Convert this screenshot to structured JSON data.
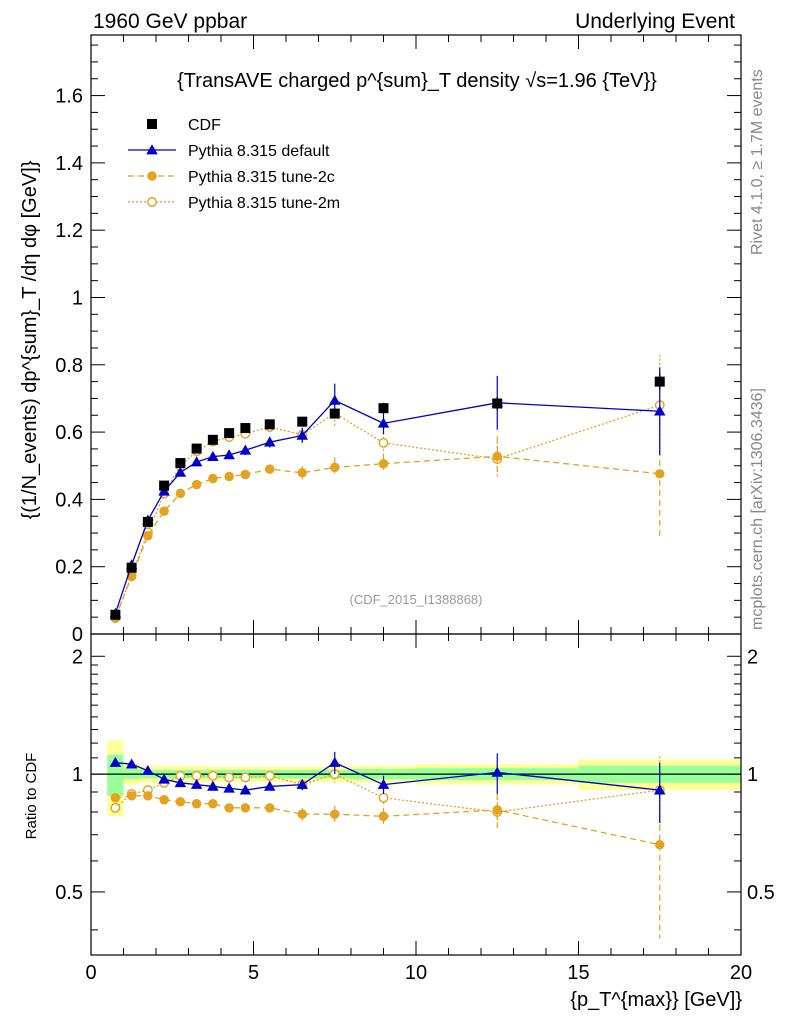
{
  "header": {
    "left": "1960 GeV ppbar",
    "right": "Underlying Event"
  },
  "side": {
    "rivet": "Rivet 4.1.0, ≥ 1.7M events",
    "mcplots": "mcplots.cern.ch [arXiv:1306.3436]"
  },
  "chart_data": [
    {
      "type": "scatter",
      "panel": "main",
      "title": "{TransAVE charged p^{sum}_T density √s=1.96 {TeV}}",
      "watermark": "(CDF_2015_I1388868)",
      "ylabel": "{(1/N_events) dp^{sum}_T /dη  dφ [GeV]}",
      "xlim": [
        0,
        20
      ],
      "ylim": [
        0,
        1.78
      ],
      "yticks": [
        "0",
        "0.2",
        "0.4",
        "0.6",
        "0.8",
        "1",
        "1.2",
        "1.4",
        "1.6"
      ],
      "legend": [
        "CDF",
        "Pythia 8.315 default",
        "Pythia 8.315 tune-2c",
        "Pythia 8.315 tune-2m"
      ],
      "legend_position": "top-left",
      "series": [
        {
          "name": "CDF",
          "style": "square",
          "color": "#000000",
          "x": [
            0.75,
            1.25,
            1.75,
            2.25,
            2.75,
            3.25,
            3.75,
            4.25,
            4.75,
            5.5,
            6.5,
            7.5,
            9.0,
            12.5,
            17.5
          ],
          "y": [
            0.057,
            0.197,
            0.333,
            0.441,
            0.508,
            0.551,
            0.577,
            0.597,
            0.612,
            0.623,
            0.631,
            0.655,
            0.671,
            0.685,
            0.75
          ],
          "err": [
            0.004,
            0.006,
            0.008,
            0.009,
            0.01,
            0.01,
            0.011,
            0.011,
            0.012,
            0.012,
            0.013,
            0.014,
            0.016,
            0.02,
            0.025
          ]
        },
        {
          "name": "Pythia 8.315 default",
          "style": "triangle",
          "color": "#0000cc",
          "x": [
            0.75,
            1.25,
            1.75,
            2.25,
            2.75,
            3.25,
            3.75,
            4.25,
            4.75,
            5.5,
            6.5,
            7.5,
            9.0,
            12.5,
            17.5
          ],
          "y": [
            0.061,
            0.205,
            0.338,
            0.424,
            0.48,
            0.511,
            0.527,
            0.532,
            0.546,
            0.57,
            0.59,
            0.694,
            0.626,
            0.687,
            0.662
          ],
          "err": [
            0.003,
            0.004,
            0.006,
            0.007,
            0.008,
            0.01,
            0.011,
            0.012,
            0.014,
            0.016,
            0.022,
            0.05,
            0.032,
            0.08,
            0.13
          ]
        },
        {
          "name": "Pythia 8.315 tune-2c",
          "style": "circle",
          "color": "#e3a220",
          "dash": "6,4",
          "x": [
            0.75,
            1.25,
            1.75,
            2.25,
            2.75,
            3.25,
            3.75,
            4.25,
            4.75,
            5.5,
            6.5,
            7.5,
            9.0,
            12.5,
            17.5
          ],
          "y": [
            0.049,
            0.171,
            0.292,
            0.365,
            0.418,
            0.444,
            0.462,
            0.468,
            0.474,
            0.49,
            0.479,
            0.495,
            0.506,
            0.528,
            0.476
          ],
          "err": [
            0.003,
            0.004,
            0.005,
            0.006,
            0.007,
            0.008,
            0.009,
            0.01,
            0.012,
            0.014,
            0.02,
            0.03,
            0.03,
            0.06,
            0.19
          ]
        },
        {
          "name": "Pythia 8.315 tune-2m",
          "style": "open-circle",
          "color": "#e3a220",
          "dash": "2,2",
          "x": [
            0.75,
            1.25,
            1.75,
            2.25,
            2.75,
            3.25,
            3.75,
            4.25,
            4.75,
            5.5,
            6.5,
            7.5,
            9.0,
            12.5,
            17.5
          ],
          "y": [
            0.047,
            0.175,
            0.302,
            0.417,
            0.5,
            0.543,
            0.572,
            0.585,
            0.595,
            0.615,
            0.592,
            0.656,
            0.568,
            0.52,
            0.68
          ],
          "err": [
            0.003,
            0.004,
            0.006,
            0.007,
            0.009,
            0.01,
            0.011,
            0.012,
            0.014,
            0.016,
            0.022,
            0.04,
            0.03,
            0.05,
            0.15
          ]
        }
      ]
    },
    {
      "type": "scatter",
      "panel": "ratio",
      "ylabel": "Ratio to CDF",
      "xlabel": "{p_T^{max}} [GeV]}",
      "xlim": [
        0,
        20
      ],
      "ylim": [
        0.345,
        2.28
      ],
      "ylog": true,
      "xticks": [
        "0",
        "5",
        "10",
        "15",
        "20"
      ],
      "yticks": [
        "0.5",
        "1",
        "2"
      ],
      "bands": {
        "edges": [
          0.5,
          1.0,
          1.5,
          2.0,
          2.5,
          3.0,
          3.5,
          4.0,
          4.5,
          5.0,
          6.0,
          7.0,
          8.0,
          10.0,
          15.0,
          20.0
        ],
        "yellow_half": [
          0.22,
          0.06,
          0.05,
          0.05,
          0.05,
          0.05,
          0.045,
          0.045,
          0.045,
          0.045,
          0.045,
          0.045,
          0.05,
          0.06,
          0.09
        ],
        "green_half": [
          0.12,
          0.03,
          0.025,
          0.025,
          0.025,
          0.025,
          0.025,
          0.025,
          0.025,
          0.025,
          0.025,
          0.025,
          0.03,
          0.035,
          0.05
        ]
      },
      "series": [
        {
          "name": "Pythia 8.315 default",
          "style": "triangle",
          "color": "#0000cc",
          "x": [
            0.75,
            1.25,
            1.75,
            2.25,
            2.75,
            3.25,
            3.75,
            4.25,
            4.75,
            5.5,
            6.5,
            7.5,
            9.0,
            12.5,
            17.5
          ],
          "y": [
            1.07,
            1.06,
            1.02,
            0.97,
            0.95,
            0.94,
            0.93,
            0.92,
            0.91,
            0.93,
            0.94,
            1.07,
            0.94,
            1.01,
            0.91
          ],
          "err": [
            0.01,
            0.01,
            0.01,
            0.01,
            0.01,
            0.01,
            0.01,
            0.01,
            0.015,
            0.015,
            0.03,
            0.07,
            0.05,
            0.12,
            0.16
          ]
        },
        {
          "name": "Pythia 8.315 tune-2c",
          "style": "circle",
          "color": "#e3a220",
          "dash": "6,4",
          "x": [
            0.75,
            1.25,
            1.75,
            2.25,
            2.75,
            3.25,
            3.75,
            4.25,
            4.75,
            5.5,
            6.5,
            7.5,
            9.0,
            12.5,
            17.5
          ],
          "y": [
            0.87,
            0.88,
            0.88,
            0.86,
            0.85,
            0.84,
            0.84,
            0.82,
            0.82,
            0.82,
            0.79,
            0.79,
            0.78,
            0.81,
            0.66
          ],
          "err": [
            0.01,
            0.01,
            0.01,
            0.01,
            0.01,
            0.01,
            0.01,
            0.01,
            0.02,
            0.02,
            0.03,
            0.04,
            0.04,
            0.08,
            0.28
          ]
        },
        {
          "name": "Pythia 8.315 tune-2m",
          "style": "open-circle",
          "color": "#e3a220",
          "dash": "2,2",
          "x": [
            0.75,
            1.25,
            1.75,
            2.25,
            2.75,
            3.25,
            3.75,
            4.25,
            4.75,
            5.5,
            6.5,
            7.5,
            9.0,
            12.5,
            17.5
          ],
          "y": [
            0.82,
            0.89,
            0.91,
            0.95,
            0.99,
            0.99,
            0.99,
            0.98,
            0.98,
            0.99,
            0.94,
            1.0,
            0.87,
            0.8,
            0.91
          ],
          "err": [
            0.01,
            0.01,
            0.01,
            0.01,
            0.01,
            0.01,
            0.01,
            0.015,
            0.02,
            0.02,
            0.03,
            0.05,
            0.04,
            0.07,
            0.2
          ]
        }
      ]
    }
  ]
}
